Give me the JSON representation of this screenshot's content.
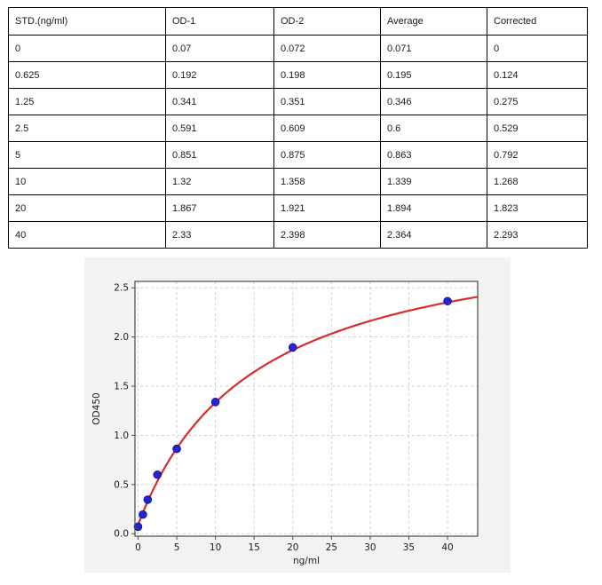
{
  "table": {
    "columns": [
      "STD.(ng/ml)",
      "OD-1",
      "OD-2",
      "Average",
      "Corrected"
    ],
    "rows": [
      [
        "0",
        "0.07",
        "0.072",
        "0.071",
        "0"
      ],
      [
        "0.625",
        "0.192",
        "0.198",
        "0.195",
        "0.124"
      ],
      [
        "1.25",
        "0.341",
        "0.351",
        "0.346",
        "0.275"
      ],
      [
        "2.5",
        "0.591",
        "0.609",
        "0.6",
        "0.529"
      ],
      [
        "5",
        "0.851",
        "0.875",
        "0.863",
        "0.792"
      ],
      [
        "10",
        "1.32",
        "1.358",
        "1.339",
        "1.268"
      ],
      [
        "20",
        "1.867",
        "1.921",
        "1.894",
        "1.823"
      ],
      [
        "40",
        "2.33",
        "2.398",
        "2.364",
        "2.293"
      ]
    ]
  },
  "chart_data": {
    "type": "scatter",
    "title": "",
    "xlabel": "ng/ml",
    "ylabel": "OD450",
    "x": [
      0,
      0.625,
      1.25,
      2.5,
      5,
      10,
      20,
      40
    ],
    "y": [
      0.071,
      0.195,
      0.346,
      0.6,
      0.863,
      1.339,
      1.894,
      2.364
    ],
    "fit_curve": {
      "model": "4PL",
      "a": 0.09,
      "b": 1.0,
      "c": 15.0,
      "d": 3.2,
      "x_start": 0,
      "x_end": 43.9
    },
    "x_ticks": [
      0,
      5,
      10,
      15,
      20,
      25,
      30,
      35,
      40
    ],
    "y_ticks": [
      0.0,
      0.5,
      1.0,
      1.5,
      2.0,
      2.5
    ],
    "xlim": [
      -0.4,
      43.9
    ],
    "ylim": [
      -0.025,
      2.565
    ],
    "grid": true,
    "legend": false,
    "colors": {
      "curve": "#d92b2b",
      "point_fill": "#2525cb",
      "point_edge": "#161699",
      "panel_bg": "#f2f2f1",
      "plot_bg": "#ffffff",
      "grid_line": "#c9c9c9",
      "frame": "#4a4a4a",
      "text": "#1a1a1a"
    }
  }
}
